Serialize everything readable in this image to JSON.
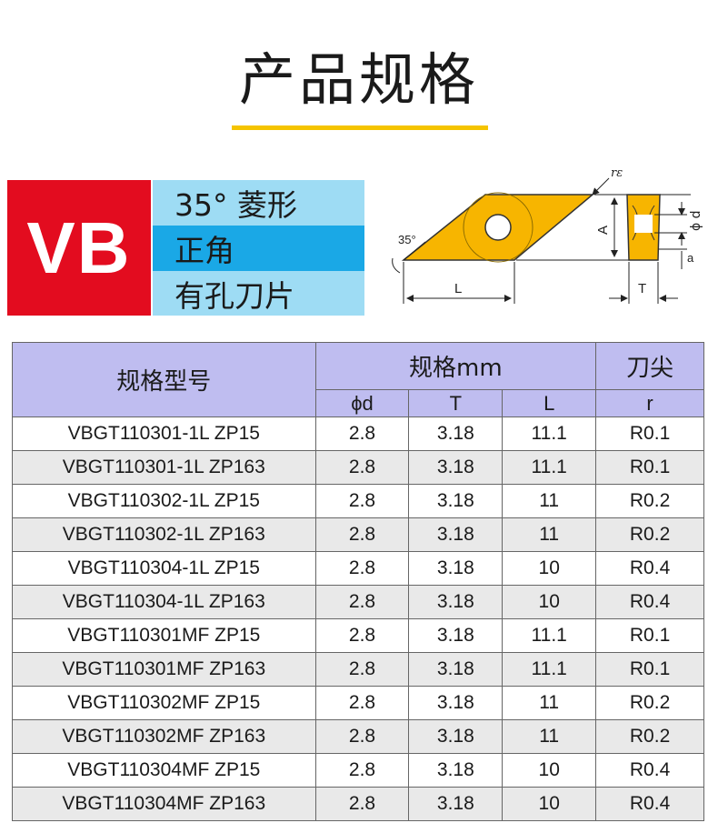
{
  "title": "产品规格",
  "insert": {
    "code": "VB",
    "desc": [
      "35° 菱形",
      "正角",
      "有孔刀片"
    ]
  },
  "drawing": {
    "angle_label": "35°",
    "radius_label": "rε",
    "length_label": "L",
    "height_label": "A",
    "thickness_label": "T",
    "diameter_label": "ϕ d",
    "a_label": "a",
    "insert_color": "#f7b500"
  },
  "table": {
    "header": {
      "model": "规格型号",
      "spec": "规格mm",
      "tip": "刀尖",
      "d": "ϕd",
      "t": "T",
      "l": "L",
      "r": "r"
    },
    "rows": [
      {
        "model": "VBGT110301-1L ZP15",
        "d": "2.8",
        "t": "3.18",
        "l": "11.1",
        "r": "R0.1"
      },
      {
        "model": "VBGT110301-1L ZP163",
        "d": "2.8",
        "t": "3.18",
        "l": "11.1",
        "r": "R0.1"
      },
      {
        "model": "VBGT110302-1L ZP15",
        "d": "2.8",
        "t": "3.18",
        "l": "11",
        "r": "R0.2"
      },
      {
        "model": "VBGT110302-1L ZP163",
        "d": "2.8",
        "t": "3.18",
        "l": "11",
        "r": "R0.2"
      },
      {
        "model": "VBGT110304-1L ZP15",
        "d": "2.8",
        "t": "3.18",
        "l": "10",
        "r": "R0.4"
      },
      {
        "model": "VBGT110304-1L ZP163",
        "d": "2.8",
        "t": "3.18",
        "l": "10",
        "r": "R0.4"
      },
      {
        "model": "VBGT110301MF ZP15",
        "d": "2.8",
        "t": "3.18",
        "l": "11.1",
        "r": "R0.1"
      },
      {
        "model": "VBGT110301MF ZP163",
        "d": "2.8",
        "t": "3.18",
        "l": "11.1",
        "r": "R0.1"
      },
      {
        "model": "VBGT110302MF ZP15",
        "d": "2.8",
        "t": "3.18",
        "l": "11",
        "r": "R0.2"
      },
      {
        "model": "VBGT110302MF ZP163",
        "d": "2.8",
        "t": "3.18",
        "l": "11",
        "r": "R0.2"
      },
      {
        "model": "VBGT110304MF ZP15",
        "d": "2.8",
        "t": "3.18",
        "l": "10",
        "r": "R0.4"
      },
      {
        "model": "VBGT110304MF ZP163",
        "d": "2.8",
        "t": "3.18",
        "l": "10",
        "r": "R0.4"
      }
    ]
  }
}
